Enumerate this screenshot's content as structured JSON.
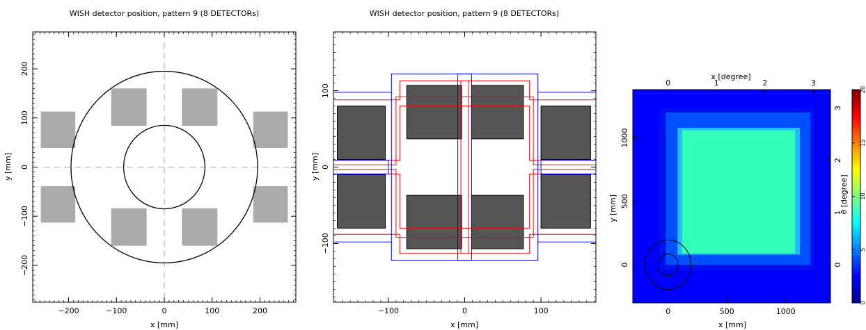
{
  "chart_data": [
    {
      "type": "diagram",
      "title": "WISH detector position, pattern 9 (8 DETECTORs)",
      "xlabel": "x [mm]",
      "ylabel": "y [mm]",
      "xlim": [
        -275,
        275
      ],
      "ylim": [
        -275,
        275
      ],
      "xticks": [
        -200,
        -100,
        0,
        100,
        200
      ],
      "yticks": [
        -200,
        -100,
        0,
        100,
        200
      ],
      "xtick_labels": [
        "−200",
        "−100",
        "0",
        "100",
        "200"
      ],
      "ytick_labels": [
        "−200",
        "−100",
        "0",
        "100",
        "200"
      ],
      "colors": {
        "detector": "#aaaaaa",
        "circle": "#000000",
        "crosshair": "#aaaaaa"
      },
      "circles": [
        {
          "cx": 0,
          "cy": 0,
          "r": 195
        },
        {
          "cx": 0,
          "cy": 0,
          "r": 85
        }
      ],
      "detectors": [
        {
          "x0": -258,
          "x1": -186,
          "y0": 39,
          "y1": 113
        },
        {
          "x0": -258,
          "x1": -186,
          "y0": -113,
          "y1": -39
        },
        {
          "x0": 186,
          "x1": 258,
          "y0": 39,
          "y1": 113
        },
        {
          "x0": 186,
          "x1": 258,
          "y0": -113,
          "y1": -39
        },
        {
          "x0": -111,
          "x1": -37,
          "y0": 84,
          "y1": 160
        },
        {
          "x0": 37,
          "x1": 111,
          "y0": 84,
          "y1": 160
        },
        {
          "x0": -111,
          "x1": -37,
          "y0": -160,
          "y1": -84
        },
        {
          "x0": 37,
          "x1": 111,
          "y0": -160,
          "y1": -84
        }
      ]
    },
    {
      "type": "diagram",
      "title": "WISH detector position, pattern 9 (8 DETECTORs)",
      "xlabel": "x [mm]",
      "ylabel": "y [mm]",
      "xlim": [
        -172,
        172
      ],
      "ylim": [
        -177,
        177
      ],
      "xticks": [
        -100,
        0,
        100
      ],
      "yticks": [
        -100,
        0,
        100
      ],
      "xtick_labels": [
        "−100",
        "0",
        "100"
      ],
      "ytick_labels": [
        "−100",
        "0",
        "100"
      ],
      "colors": {
        "detector": "#555555",
        "outline": "#000000",
        "red": "#ff0000",
        "blue": "#0000ff"
      },
      "detectors": [
        {
          "x0": -167,
          "x1": -104,
          "y0": 10,
          "y1": 80
        },
        {
          "x0": 100,
          "x1": 165,
          "y0": 10,
          "y1": 80
        },
        {
          "x0": -167,
          "x1": -104,
          "y0": -80,
          "y1": -10
        },
        {
          "x0": 100,
          "x1": 165,
          "y0": -80,
          "y1": -10
        },
        {
          "x0": -76,
          "x1": -4,
          "y0": 37,
          "y1": 107
        },
        {
          "x0": 9,
          "x1": 77,
          "y0": 37,
          "y1": 107
        },
        {
          "x0": -76,
          "x1": -4,
          "y0": -107,
          "y1": -37
        },
        {
          "x0": 9,
          "x1": 77,
          "y0": -107,
          "y1": -37
        }
      ],
      "red_polylines": [
        [
          [
            -172,
            88
          ],
          [
            -85,
            88
          ],
          [
            -85,
            113
          ],
          [
            85,
            113
          ],
          [
            85,
            88
          ],
          [
            172,
            88
          ]
        ],
        [
          [
            -172,
            -88
          ],
          [
            -85,
            -88
          ],
          [
            -85,
            -113
          ],
          [
            85,
            -113
          ],
          [
            85,
            -88
          ],
          [
            172,
            -88
          ]
        ],
        [
          [
            -172,
            3
          ],
          [
            -90,
            3
          ],
          [
            -90,
            92
          ],
          [
            90,
            92
          ],
          [
            90,
            3
          ],
          [
            172,
            3
          ]
        ],
        [
          [
            -172,
            -3
          ],
          [
            -90,
            -3
          ],
          [
            -90,
            -92
          ],
          [
            90,
            -92
          ],
          [
            90,
            -3
          ],
          [
            172,
            -3
          ]
        ],
        [
          [
            -172,
            9
          ],
          [
            -85,
            9
          ],
          [
            -85,
            80
          ],
          [
            85,
            80
          ],
          [
            85,
            9
          ],
          [
            172,
            9
          ]
        ],
        [
          [
            -172,
            -9
          ],
          [
            -85,
            -9
          ],
          [
            -85,
            -80
          ],
          [
            85,
            -80
          ],
          [
            85,
            -9
          ],
          [
            172,
            -9
          ]
        ],
        [
          [
            -5,
            -113
          ],
          [
            -5,
            113
          ]
        ],
        [
          [
            5,
            -113
          ],
          [
            5,
            113
          ]
        ]
      ],
      "blue_polylines": [
        [
          [
            -172,
            98
          ],
          [
            -96,
            98
          ],
          [
            -96,
            122
          ],
          [
            96,
            122
          ],
          [
            96,
            98
          ],
          [
            172,
            98
          ]
        ],
        [
          [
            -172,
            -98
          ],
          [
            -96,
            -98
          ],
          [
            -96,
            -122
          ],
          [
            96,
            -122
          ],
          [
            96,
            -98
          ],
          [
            172,
            -98
          ]
        ],
        [
          [
            -172,
            -9
          ],
          [
            -100,
            -9
          ],
          [
            -100,
            9
          ],
          [
            -172,
            9
          ]
        ],
        [
          [
            172,
            -9
          ],
          [
            100,
            -9
          ],
          [
            100,
            9
          ],
          [
            172,
            9
          ]
        ],
        [
          [
            -9,
            -122
          ],
          [
            9,
            -122
          ],
          [
            9,
            122
          ],
          [
            -9,
            122
          ],
          [
            -9,
            -122
          ]
        ],
        [
          [
            -96,
            -98
          ],
          [
            -96,
            98
          ]
        ],
        [
          [
            96,
            -98
          ],
          [
            96,
            98
          ]
        ]
      ]
    },
    {
      "type": "heatmap",
      "xlabel": "x [mm]",
      "ylabel": "y [mm]",
      "x2label": "x [degree]",
      "y2label": "ϑ [degree]",
      "xlim": [
        -300,
        1380
      ],
      "ylim": [
        -300,
        1380
      ],
      "xticks": [
        0,
        500,
        1000
      ],
      "yticks": [
        0,
        500,
        1000
      ],
      "x2ticks": [
        0,
        1,
        2,
        3
      ],
      "y2ticks": [
        0,
        1,
        2,
        3
      ],
      "x2_per_unit_mm": 0.00243,
      "colorbar": {
        "min": 0,
        "max": 20,
        "ticks": [
          0,
          5,
          10,
          15,
          20
        ]
      },
      "colors": {
        "background": "#0000ff",
        "edge": "#0011ee",
        "band": "#0050ff",
        "inner_edge": "#22bbff",
        "core": "#33ffbb",
        "circle": "#000000"
      },
      "regions": [
        {
          "x0": -300,
          "x1": 1380,
          "y0": -300,
          "y1": 1380,
          "level": "background"
        },
        {
          "x0": -70,
          "x1": 1240,
          "y0": -40,
          "y1": 1230,
          "level": "edge"
        },
        {
          "x0": -20,
          "x1": 1210,
          "y0": 0,
          "y1": 1200,
          "level": "band"
        },
        {
          "x0": 80,
          "x1": 1120,
          "y0": 80,
          "y1": 1080,
          "level": "inner_edge"
        },
        {
          "x0": 120,
          "x1": 1080,
          "y0": 90,
          "y1": 1060,
          "level": "core"
        }
      ],
      "circles": [
        {
          "cx": 0,
          "cy": 0,
          "r": 195
        },
        {
          "cx": 0,
          "cy": 0,
          "r": 85
        }
      ]
    }
  ]
}
